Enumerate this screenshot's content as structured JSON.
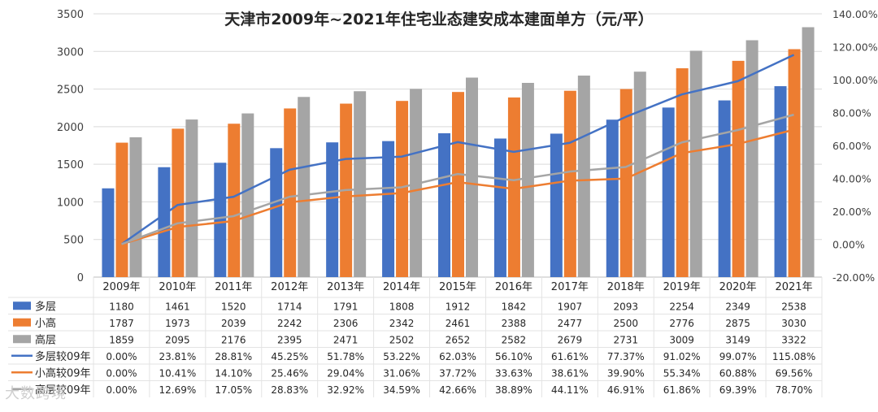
{
  "chart_data": {
    "type": "bar",
    "title": "天津市2009年~2021年住宅业态建安成本建面单方（元/平）",
    "categories": [
      "2009年",
      "2010年",
      "2011年",
      "2012年",
      "2013年",
      "2014年",
      "2015年",
      "2016年",
      "2017年",
      "2018年",
      "2019年",
      "2020年",
      "2021年"
    ],
    "y_left": {
      "min": 0,
      "max": 3500,
      "step": 500,
      "ticks": [
        "0",
        "500",
        "1000",
        "1500",
        "2000",
        "2500",
        "3000",
        "3500"
      ]
    },
    "y_right": {
      "min": -20,
      "max": 140,
      "step": 20,
      "ticks": [
        "-20.00%",
        "0.00%",
        "20.00%",
        "40.00%",
        "60.00%",
        "80.00%",
        "100.00%",
        "120.00%",
        "140.00%"
      ]
    },
    "series": [
      {
        "name": "多层",
        "kind": "bar",
        "axis": "left",
        "color": "#4472C4",
        "values": [
          1180,
          1461,
          1520,
          1714,
          1791,
          1808,
          1912,
          1842,
          1907,
          2093,
          2254,
          2349,
          2538
        ],
        "labels": [
          "1180",
          "1461",
          "1520",
          "1714",
          "1791",
          "1808",
          "1912",
          "1842",
          "1907",
          "2093",
          "2254",
          "2349",
          "2538"
        ]
      },
      {
        "name": "小高",
        "kind": "bar",
        "axis": "left",
        "color": "#ED7D31",
        "values": [
          1787,
          1973,
          2039,
          2242,
          2306,
          2342,
          2461,
          2388,
          2477,
          2500,
          2776,
          2875,
          3030
        ],
        "labels": [
          "1787",
          "1973",
          "2039",
          "2242",
          "2306",
          "2342",
          "2461",
          "2388",
          "2477",
          "2500",
          "2776",
          "2875",
          "3030"
        ]
      },
      {
        "name": "高层",
        "kind": "bar",
        "axis": "left",
        "color": "#A5A5A5",
        "values": [
          1859,
          2095,
          2176,
          2395,
          2471,
          2502,
          2652,
          2582,
          2679,
          2731,
          3009,
          3149,
          3322
        ],
        "labels": [
          "1859",
          "2095",
          "2176",
          "2395",
          "2471",
          "2502",
          "2652",
          "2582",
          "2679",
          "2731",
          "3009",
          "3149",
          "3322"
        ]
      },
      {
        "name": "多层较09年",
        "kind": "line",
        "axis": "right",
        "color": "#4472C4",
        "values": [
          0.0,
          23.81,
          28.81,
          45.25,
          51.78,
          53.22,
          62.03,
          56.1,
          61.61,
          77.37,
          91.02,
          99.07,
          115.08
        ],
        "labels": [
          "0.00%",
          "23.81%",
          "28.81%",
          "45.25%",
          "51.78%",
          "53.22%",
          "62.03%",
          "56.10%",
          "61.61%",
          "77.37%",
          "91.02%",
          "99.07%",
          "115.08%"
        ]
      },
      {
        "name": "小高较09年",
        "kind": "line",
        "axis": "right",
        "color": "#ED7D31",
        "values": [
          0.0,
          10.41,
          14.1,
          25.46,
          29.04,
          31.06,
          37.72,
          33.63,
          38.61,
          39.9,
          55.34,
          60.88,
          69.56
        ],
        "labels": [
          "0.00%",
          "10.41%",
          "14.10%",
          "25.46%",
          "29.04%",
          "31.06%",
          "37.72%",
          "33.63%",
          "38.61%",
          "39.90%",
          "55.34%",
          "60.88%",
          "69.56%"
        ]
      },
      {
        "name": "高层较09年",
        "kind": "line",
        "axis": "right",
        "color": "#A5A5A5",
        "values": [
          0.0,
          12.69,
          17.05,
          28.83,
          32.92,
          34.59,
          42.66,
          38.89,
          44.11,
          46.91,
          61.86,
          69.39,
          78.7
        ],
        "labels": [
          "0.00%",
          "12.69%",
          "17.05%",
          "28.83%",
          "32.92%",
          "34.59%",
          "42.66%",
          "38.89%",
          "44.11%",
          "46.91%",
          "61.86%",
          "69.39%",
          "78.70%"
        ]
      }
    ],
    "legend": "data-table-below",
    "grid": true
  },
  "watermark": "大数跨境"
}
